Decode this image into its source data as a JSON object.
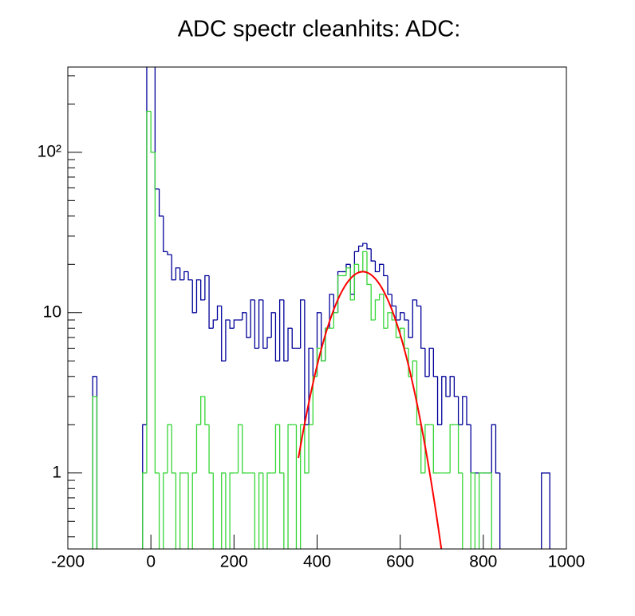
{
  "chart_data": {
    "type": "histogram",
    "title": "ADC spectr cleanhits: ADC:",
    "bins": [
      -150,
      -140,
      -130,
      -120,
      -110,
      -100,
      -90,
      -80,
      -70,
      -60,
      -50,
      -40,
      -30,
      -20,
      -10,
      0,
      10,
      20,
      30,
      40,
      50,
      60,
      70,
      80,
      90,
      100,
      110,
      120,
      130,
      140,
      150,
      160,
      170,
      180,
      190,
      200,
      210,
      220,
      230,
      240,
      250,
      260,
      270,
      280,
      290,
      300,
      310,
      320,
      330,
      340,
      350,
      360,
      370,
      380,
      390,
      400,
      410,
      420,
      430,
      440,
      450,
      460,
      470,
      480,
      490,
      500,
      510,
      520,
      530,
      540,
      550,
      560,
      570,
      580,
      590,
      600,
      610,
      620,
      630,
      640,
      650,
      660,
      670,
      680,
      690,
      700,
      710,
      720,
      730,
      740,
      750,
      760,
      770,
      780,
      790,
      800,
      810,
      820,
      830,
      840,
      850,
      860,
      870,
      880,
      890,
      900,
      910,
      920,
      930,
      940,
      950,
      960
    ],
    "series": [
      {
        "color": "#000099",
        "values": [
          0,
          4,
          0,
          0,
          0,
          0,
          0,
          0,
          0,
          0,
          0,
          0,
          0,
          2,
          400,
          350,
          59,
          40,
          24,
          23,
          16,
          19,
          16,
          18,
          16,
          10,
          16,
          12,
          17,
          8,
          9,
          11,
          5,
          9,
          8,
          9,
          9,
          10,
          7,
          12,
          6,
          12,
          6,
          7,
          10,
          5,
          12,
          5,
          8,
          6,
          6,
          12,
          2,
          6,
          4,
          10,
          5,
          8,
          13,
          10,
          18,
          18,
          20,
          13,
          24,
          26,
          27,
          25,
          21,
          18,
          20,
          17,
          13,
          11,
          9,
          10,
          9,
          7,
          12,
          11,
          6,
          4,
          6,
          4,
          2,
          4,
          3,
          4,
          3,
          2,
          3,
          2,
          1,
          1,
          1,
          1,
          1,
          2,
          1,
          0,
          0,
          0,
          0,
          0,
          0,
          0,
          0,
          0,
          0,
          1,
          1
        ]
      },
      {
        "color": "#36d636",
        "values": [
          0,
          3,
          0,
          0,
          0,
          0,
          0,
          0,
          0,
          0,
          0,
          0,
          0,
          1,
          180,
          100,
          1,
          0,
          1,
          2,
          1,
          0,
          1,
          1,
          0,
          1,
          2,
          3,
          2,
          1,
          0,
          0,
          1,
          0,
          1,
          1,
          2,
          1,
          1,
          1,
          0,
          1,
          0,
          1,
          1,
          2,
          1,
          0,
          2,
          2,
          0,
          2,
          1,
          2,
          4,
          6,
          5,
          8,
          8,
          10,
          17,
          17,
          19,
          12,
          20,
          18,
          24,
          15,
          9,
          12,
          13,
          8,
          10,
          9,
          7,
          8,
          6,
          4,
          5,
          2,
          1,
          2,
          2,
          1,
          1,
          1,
          1,
          2,
          2,
          1,
          0,
          0,
          1,
          0,
          1,
          1,
          1,
          0,
          0,
          0,
          0,
          0,
          0,
          0,
          0,
          0,
          0,
          0,
          0,
          0,
          0
        ]
      }
    ],
    "fit": {
      "color": "#ff0000",
      "constant": 18,
      "mean": 510,
      "sigma": 67,
      "xrange": [
        355,
        705
      ]
    },
    "xlim": [
      -200,
      1000
    ],
    "xticks": [
      -200,
      0,
      200,
      400,
      600,
      800,
      1000
    ],
    "ylim": [
      0.336,
      340
    ],
    "log_y": true,
    "yticks": [
      1,
      10,
      {
        "value": 100,
        "label": "10²"
      }
    ],
    "yminorticks": [
      0.4,
      0.5,
      0.6,
      0.7,
      0.8,
      0.9,
      2,
      3,
      4,
      5,
      6,
      7,
      8,
      9,
      20,
      30,
      40,
      50,
      60,
      70,
      80,
      90,
      200,
      300
    ]
  }
}
